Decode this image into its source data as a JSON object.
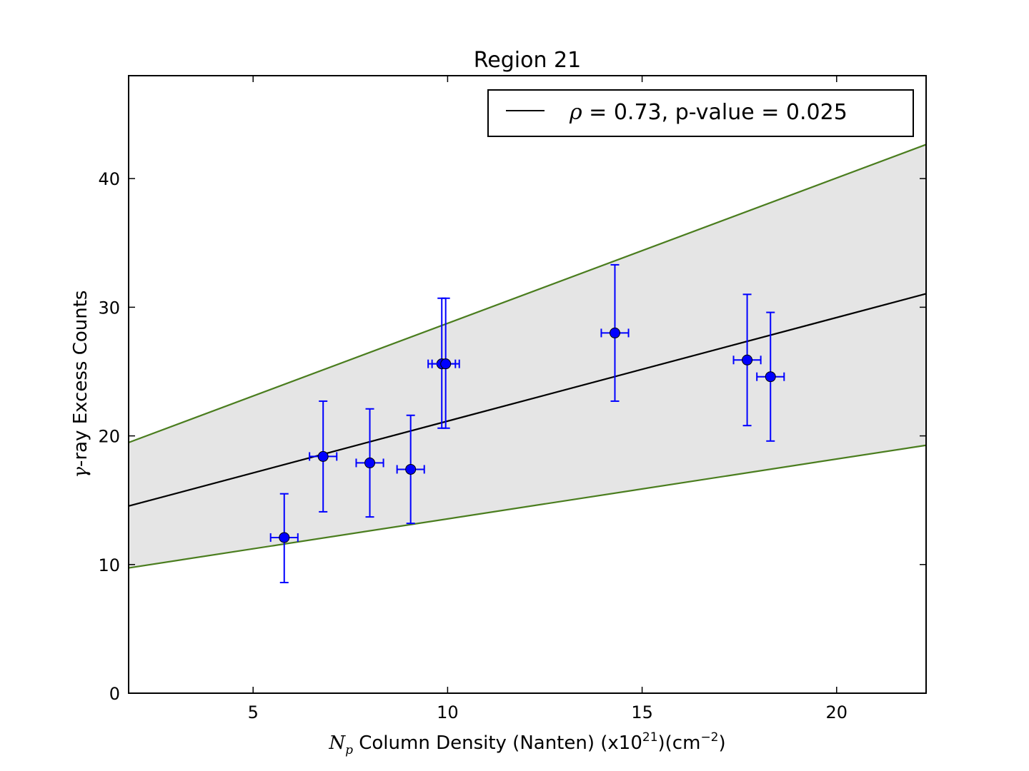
{
  "chart_data": {
    "type": "scatter",
    "title": "Region 21",
    "xlabel": {
      "symbol": "N",
      "symbol_sub": "p",
      "text_before_exp": " Column Density (Nanten) (x10",
      "exponent": "21",
      "text_mid": ")(cm",
      "unit_exponent": "−2",
      "text_end": ")"
    },
    "ylabel": {
      "symbol": "γ",
      "text": "-ray Excess Counts"
    },
    "xlim": [
      1.8,
      22.3
    ],
    "ylim": [
      0,
      48
    ],
    "xticks": [
      5,
      10,
      15,
      20
    ],
    "yticks": [
      0,
      10,
      20,
      30,
      40
    ],
    "grid": false,
    "legend": {
      "placement": "top-right",
      "symbol": "ρ",
      "text": " = 0.73, p-value = 0.025"
    },
    "fit_line": {
      "slope": 0.805,
      "intercept": 13.1,
      "color": "#000000"
    },
    "band": {
      "upper": {
        "slope": 1.13,
        "intercept": 17.45
      },
      "lower": {
        "slope": 0.465,
        "intercept": 8.9
      },
      "line_color": "#4a7d1e",
      "fill_color": "#e5e5e5"
    },
    "series": [
      {
        "marker_color": "#0000ff",
        "points": [
          {
            "x": 5.8,
            "y": 12.1,
            "xerr": 0.35,
            "yerr_low": 3.5,
            "yerr_high": 3.4
          },
          {
            "x": 6.8,
            "y": 18.4,
            "xerr": 0.35,
            "yerr_low": 4.3,
            "yerr_high": 4.3
          },
          {
            "x": 8.0,
            "y": 17.9,
            "xerr": 0.35,
            "yerr_low": 4.2,
            "yerr_high": 4.2
          },
          {
            "x": 9.05,
            "y": 17.4,
            "xerr": 0.35,
            "yerr_low": 4.2,
            "yerr_high": 4.2
          },
          {
            "x": 9.85,
            "y": 25.6,
            "xerr": 0.35,
            "yerr_low": 5.0,
            "yerr_high": 5.1
          },
          {
            "x": 9.95,
            "y": 25.6,
            "xerr": 0.35,
            "yerr_low": 5.0,
            "yerr_high": 5.1
          },
          {
            "x": 14.3,
            "y": 28.0,
            "xerr": 0.35,
            "yerr_low": 5.3,
            "yerr_high": 5.3
          },
          {
            "x": 17.7,
            "y": 25.9,
            "xerr": 0.35,
            "yerr_low": 5.1,
            "yerr_high": 5.1
          },
          {
            "x": 18.3,
            "y": 24.6,
            "xerr": 0.35,
            "yerr_low": 5.0,
            "yerr_high": 5.0
          }
        ]
      }
    ]
  }
}
